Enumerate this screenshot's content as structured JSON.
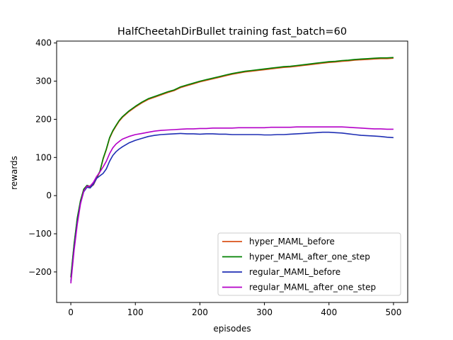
{
  "chart_data": {
    "type": "line",
    "title": "HalfCheetahDirBullet training fast_batch=60",
    "xlabel": "episodes",
    "ylabel": "rewards",
    "xlim": [
      -22,
      522
    ],
    "ylim": [
      -280,
      405
    ],
    "xticks": [
      0,
      100,
      200,
      300,
      400,
      500
    ],
    "yticks": [
      -200,
      -100,
      0,
      100,
      200,
      300,
      400
    ],
    "legend_position": "lower-right",
    "series": [
      {
        "name": "hyper_MAML_before",
        "color": "#d95319",
        "x": [
          0,
          5,
          10,
          15,
          20,
          25,
          30,
          35,
          40,
          45,
          50,
          55,
          60,
          65,
          70,
          75,
          80,
          90,
          100,
          110,
          120,
          130,
          140,
          150,
          160,
          170,
          180,
          190,
          200,
          210,
          220,
          230,
          240,
          250,
          260,
          270,
          280,
          290,
          300,
          310,
          320,
          330,
          340,
          350,
          360,
          370,
          380,
          390,
          400,
          410,
          420,
          430,
          440,
          450,
          460,
          470,
          480,
          490,
          500
        ],
        "y": [
          -215,
          -130,
          -60,
          -15,
          15,
          25,
          22,
          28,
          45,
          62,
          95,
          120,
          150,
          168,
          182,
          195,
          205,
          220,
          232,
          243,
          252,
          258,
          264,
          270,
          275,
          283,
          288,
          293,
          298,
          302,
          306,
          310,
          314,
          318,
          321,
          324,
          326,
          328,
          330,
          332,
          334,
          336,
          337,
          339,
          341,
          343,
          345,
          347,
          349,
          350,
          352,
          353,
          355,
          356,
          357,
          358,
          359,
          359,
          360
        ]
      },
      {
        "name": "hyper_MAML_after_one_step",
        "color": "#008000",
        "x": [
          0,
          5,
          10,
          15,
          20,
          25,
          30,
          35,
          40,
          45,
          50,
          55,
          60,
          65,
          70,
          75,
          80,
          90,
          100,
          110,
          120,
          130,
          140,
          150,
          160,
          170,
          180,
          190,
          200,
          210,
          220,
          230,
          240,
          250,
          260,
          270,
          280,
          290,
          300,
          310,
          320,
          330,
          340,
          350,
          360,
          370,
          380,
          390,
          400,
          410,
          420,
          430,
          440,
          450,
          460,
          470,
          480,
          490,
          500
        ],
        "y": [
          -213,
          -128,
          -58,
          -13,
          17,
          27,
          24,
          30,
          47,
          64,
          97,
          122,
          152,
          170,
          184,
          197,
          207,
          222,
          234,
          245,
          254,
          260,
          266,
          272,
          277,
          285,
          290,
          295,
          300,
          304,
          308,
          312,
          316,
          320,
          323,
          326,
          328,
          330,
          332,
          334,
          336,
          338,
          339,
          341,
          343,
          345,
          347,
          349,
          351,
          352,
          354,
          355,
          357,
          358,
          359,
          360,
          361,
          361,
          362
        ]
      },
      {
        "name": "regular_MAML_before",
        "color": "#1f2fb4",
        "x": [
          0,
          5,
          10,
          15,
          20,
          25,
          30,
          35,
          40,
          45,
          50,
          55,
          60,
          65,
          70,
          75,
          80,
          90,
          100,
          110,
          120,
          130,
          140,
          150,
          160,
          170,
          180,
          190,
          200,
          210,
          220,
          230,
          240,
          250,
          260,
          270,
          280,
          290,
          300,
          310,
          320,
          330,
          340,
          350,
          360,
          370,
          380,
          390,
          400,
          410,
          420,
          430,
          440,
          450,
          460,
          470,
          480,
          490,
          500
        ],
        "y": [
          -225,
          -140,
          -70,
          -20,
          10,
          22,
          20,
          30,
          45,
          52,
          58,
          70,
          90,
          105,
          115,
          122,
          128,
          138,
          145,
          150,
          155,
          158,
          160,
          161,
          162,
          163,
          162,
          162,
          161,
          162,
          162,
          161,
          161,
          160,
          160,
          160,
          160,
          160,
          159,
          159,
          160,
          160,
          161,
          162,
          163,
          164,
          165,
          166,
          166,
          165,
          164,
          162,
          160,
          158,
          157,
          156,
          155,
          153,
          152
        ]
      },
      {
        "name": "regular_MAML_after_one_step",
        "color": "#b400c8",
        "x": [
          0,
          5,
          10,
          15,
          20,
          25,
          30,
          35,
          40,
          45,
          50,
          55,
          60,
          65,
          70,
          75,
          80,
          90,
          100,
          110,
          120,
          130,
          140,
          150,
          160,
          170,
          180,
          190,
          200,
          210,
          220,
          230,
          240,
          250,
          260,
          270,
          280,
          290,
          300,
          310,
          320,
          330,
          340,
          350,
          360,
          370,
          380,
          390,
          400,
          410,
          420,
          430,
          440,
          450,
          460,
          470,
          480,
          490,
          500
        ],
        "y": [
          -230,
          -145,
          -75,
          -22,
          12,
          25,
          25,
          35,
          50,
          62,
          75,
          90,
          110,
          125,
          135,
          142,
          148,
          155,
          160,
          163,
          166,
          169,
          171,
          172,
          173,
          174,
          175,
          175,
          176,
          176,
          177,
          177,
          177,
          177,
          178,
          178,
          178,
          178,
          178,
          179,
          179,
          179,
          179,
          180,
          180,
          180,
          180,
          180,
          180,
          180,
          180,
          179,
          178,
          177,
          176,
          175,
          175,
          174,
          174
        ]
      }
    ]
  }
}
